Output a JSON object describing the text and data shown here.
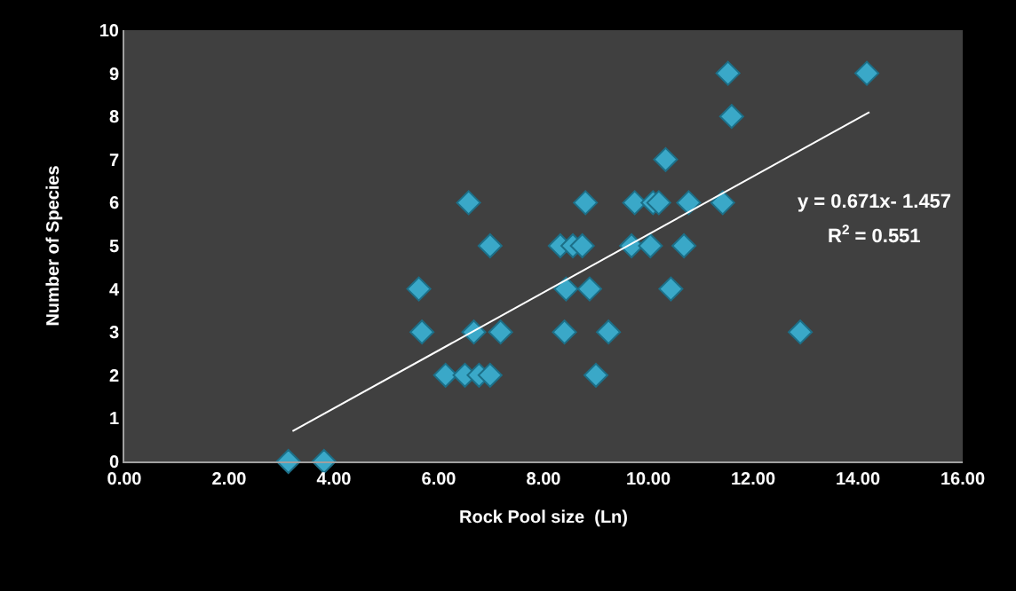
{
  "chart_data": {
    "type": "scatter",
    "xlabel": "Rock Pool size  (Ln)",
    "ylabel": "Number of Species",
    "xlim": [
      0,
      16
    ],
    "xticks": [
      {
        "value": 0,
        "label": "0.00"
      },
      {
        "value": 2,
        "label": "2.00"
      },
      {
        "value": 4,
        "label": "4.00"
      },
      {
        "value": 6,
        "label": "6.00"
      },
      {
        "value": 8,
        "label": "8.00"
      },
      {
        "value": 10,
        "label": "10.00"
      },
      {
        "value": 12,
        "label": "12.00"
      },
      {
        "value": 14,
        "label": "14.00"
      },
      {
        "value": 16,
        "label": "16.00"
      }
    ],
    "ylim": [
      0,
      10
    ],
    "yticks": [
      0,
      1,
      2,
      3,
      4,
      5,
      6,
      7,
      8,
      9,
      10
    ],
    "marker": "diamond",
    "series": [
      {
        "color": "#3aa8c8",
        "x": [
          3.13,
          3.81,
          5.62,
          5.68,
          6.67,
          7.18,
          6.13,
          6.5,
          6.77,
          6.98,
          6.57,
          6.98,
          11.52,
          14.17,
          11.59,
          10.33,
          8.8,
          9.74,
          10.09,
          10.2,
          10.77,
          11.42,
          8.32,
          8.56,
          8.74,
          9.68,
          10.04,
          10.68,
          8.43,
          8.88,
          10.43,
          8.4,
          9.24,
          12.9,
          9.0
        ],
        "values": [
          0,
          0,
          4,
          3,
          3,
          3,
          2,
          2,
          2,
          2,
          6,
          5,
          9,
          9,
          8,
          7,
          6,
          6,
          6,
          6,
          6,
          6,
          5,
          5,
          5,
          5,
          5,
          5,
          4,
          4,
          4,
          3,
          3,
          3,
          2
        ]
      },
      {
        "type": "line",
        "marker": "none",
        "color": "#ffffff",
        "x": [
          3.21,
          14.22
        ],
        "values": [
          0.7,
          8.1
        ]
      }
    ],
    "annotations": [
      "y = 0.671x- 1.457",
      "R$^{2}$ = 0.551"
    ]
  }
}
